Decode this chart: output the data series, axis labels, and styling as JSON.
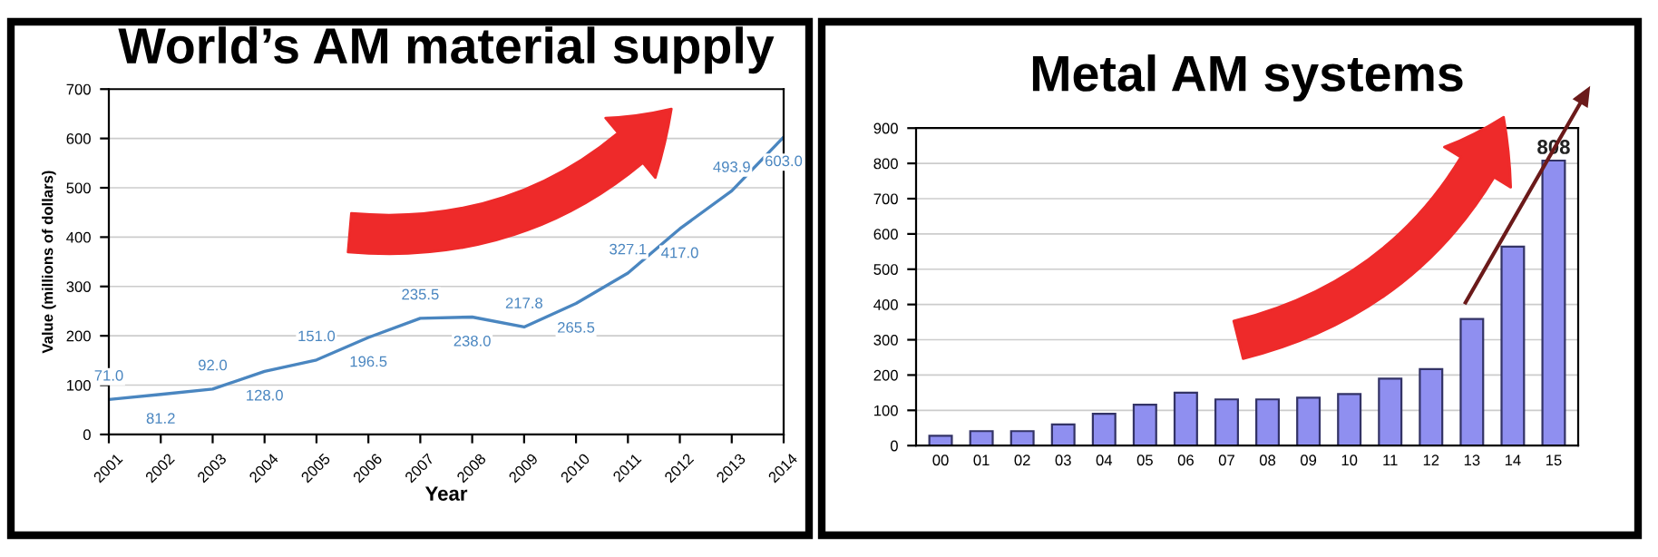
{
  "chart_data": [
    {
      "type": "line",
      "title": "World’s AM material supply",
      "xlabel": "Year",
      "ylabel": "Value (millions of dollars)",
      "categories": [
        "2001",
        "2002",
        "2003",
        "2004",
        "2005",
        "2006",
        "2007",
        "2008",
        "2009",
        "2010",
        "2011",
        "2012",
        "2013",
        "2014"
      ],
      "series": [
        {
          "color": "#4a86c0",
          "values": [
            71.0,
            81.2,
            92.0,
            128.0,
            151.0,
            196.5,
            235.5,
            238.0,
            217.8,
            265.5,
            327.1,
            417.0,
            493.9,
            603.0
          ],
          "value_labels": [
            "71.0",
            "81.2",
            "92.0",
            "128.0",
            "151.0",
            "196.5",
            "235.5",
            "238.0",
            "217.8",
            "265.5",
            "327.1",
            "417.0",
            "493.9",
            "603.0"
          ]
        }
      ],
      "ylim": [
        0,
        700
      ],
      "yticks": [
        0,
        100,
        200,
        300,
        400,
        500,
        600,
        700
      ],
      "grid": "y",
      "marker": "none",
      "line_style": "solid"
    },
    {
      "type": "bar",
      "title": "Metal AM systems",
      "categories": [
        "00",
        "01",
        "02",
        "03",
        "04",
        "05",
        "06",
        "07",
        "08",
        "09",
        "10",
        "11",
        "12",
        "13",
        "14",
        "15"
      ],
      "series": [
        {
          "color": "#8f8ff0",
          "values": [
            28,
            41,
            41,
            60,
            90,
            116,
            150,
            131,
            131,
            136,
            146,
            190,
            217,
            359,
            564,
            808
          ],
          "value_labels": [
            null,
            null,
            null,
            null,
            null,
            null,
            null,
            null,
            null,
            null,
            null,
            null,
            null,
            null,
            null,
            "808"
          ]
        }
      ],
      "ylim": [
        0,
        900
      ],
      "yticks": [
        0,
        100,
        200,
        300,
        400,
        500,
        600,
        700,
        800,
        900
      ],
      "grid": "y"
    }
  ]
}
